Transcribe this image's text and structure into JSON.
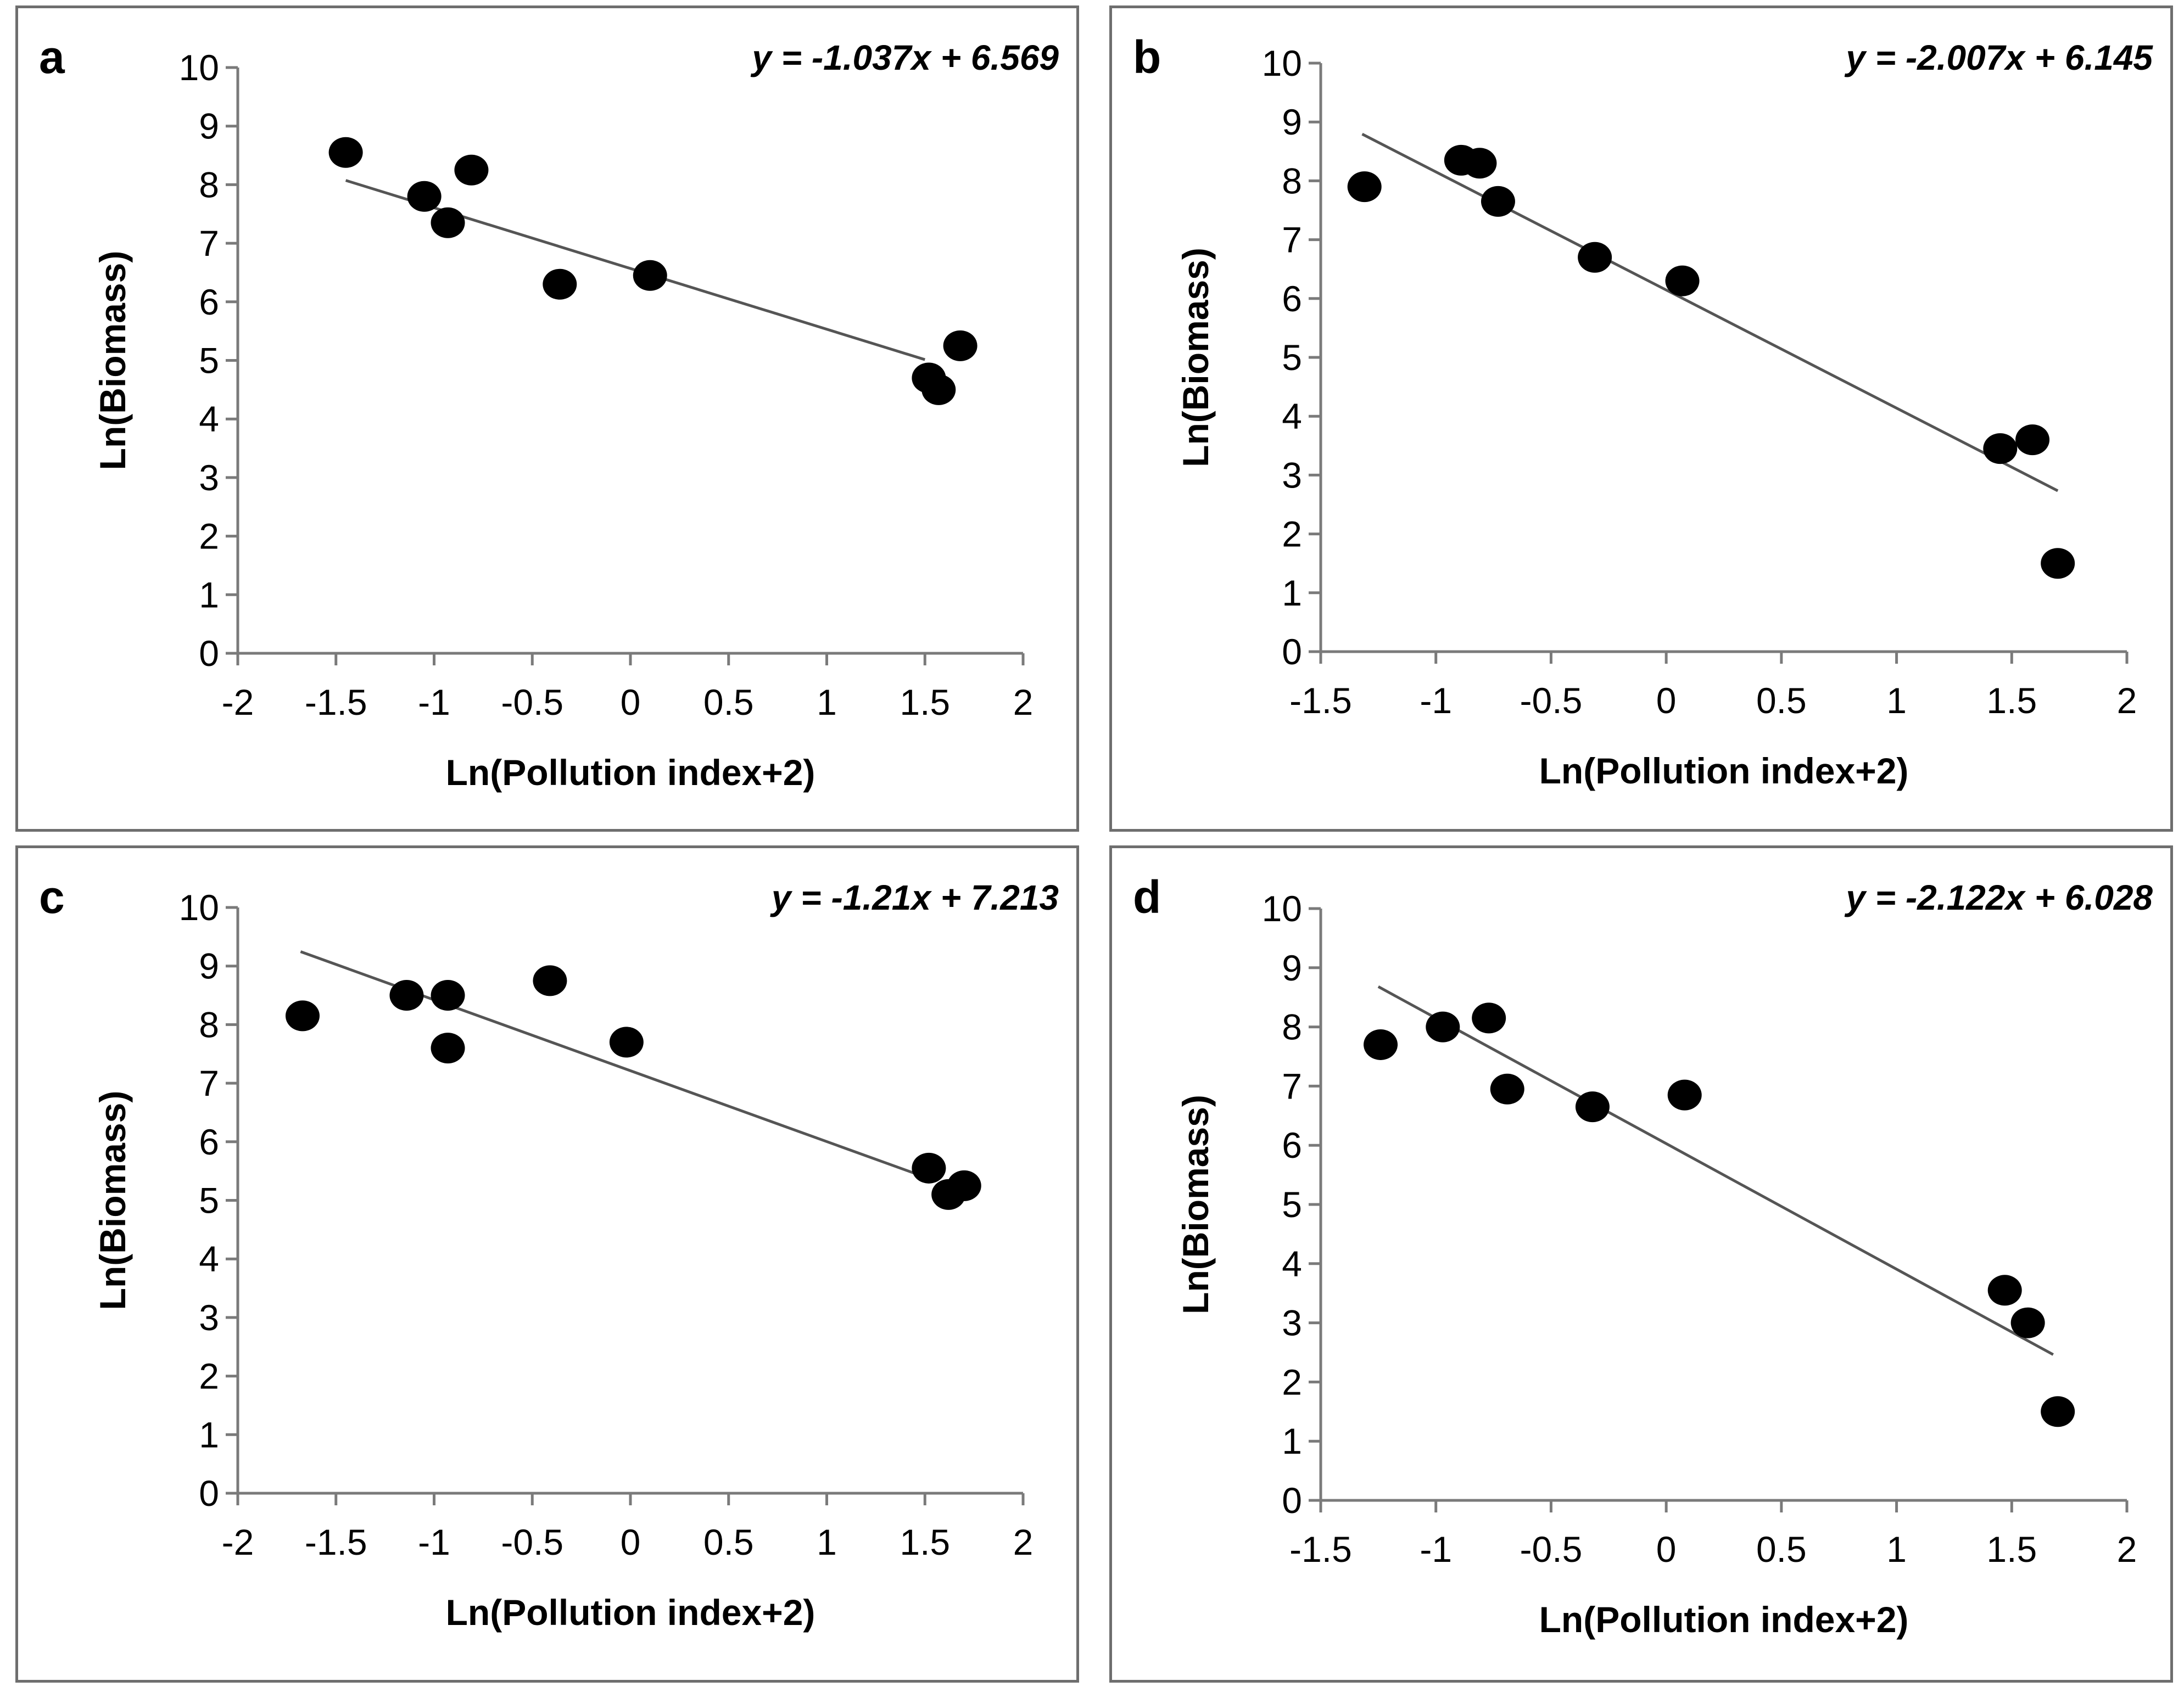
{
  "chart_data": [
    {
      "type": "scatter",
      "panel_label": "a",
      "equation": "y = -1.037x + 6.569",
      "slope": -1.037,
      "intercept": 6.569,
      "trend_x": [
        -1.45,
        1.5
      ],
      "xlabel": "Ln(Pollution index+2)",
      "ylabel": "Ln(Biomass)",
      "xlim": [
        -2,
        2
      ],
      "ylim": [
        0,
        10
      ],
      "x_ticks": [
        "-2",
        "-1.5",
        "-1",
        "-0.5",
        "0",
        "0.5",
        "1",
        "1.5",
        "2"
      ],
      "y_ticks": [
        "0",
        "1",
        "2",
        "3",
        "4",
        "5",
        "6",
        "7",
        "8",
        "9",
        "10"
      ],
      "points": [
        {
          "x": -1.45,
          "y": 8.55
        },
        {
          "x": -1.05,
          "y": 7.8
        },
        {
          "x": -0.93,
          "y": 7.35
        },
        {
          "x": -0.81,
          "y": 8.25
        },
        {
          "x": -0.36,
          "y": 6.3
        },
        {
          "x": 0.1,
          "y": 6.45
        },
        {
          "x": 1.52,
          "y": 4.7
        },
        {
          "x": 1.57,
          "y": 4.5
        },
        {
          "x": 1.68,
          "y": 5.25
        }
      ]
    },
    {
      "type": "scatter",
      "panel_label": "b",
      "equation": "y = -2.007x + 6.145",
      "slope": -2.007,
      "intercept": 6.145,
      "trend_x": [
        -1.32,
        1.7
      ],
      "xlabel": "Ln(Pollution index+2)",
      "ylabel": "Ln(Biomass)",
      "xlim": [
        -1.5,
        2
      ],
      "ylim": [
        0,
        10
      ],
      "x_ticks": [
        "-1.5",
        "-1",
        "-0.5",
        "0",
        "0.5",
        "1",
        "1.5",
        "2"
      ],
      "y_ticks": [
        "0",
        "1",
        "2",
        "3",
        "4",
        "5",
        "6",
        "7",
        "8",
        "9",
        "10"
      ],
      "points": [
        {
          "x": -1.31,
          "y": 7.9
        },
        {
          "x": -0.89,
          "y": 8.35
        },
        {
          "x": -0.81,
          "y": 8.3
        },
        {
          "x": -0.73,
          "y": 7.65
        },
        {
          "x": -0.31,
          "y": 6.7
        },
        {
          "x": 0.07,
          "y": 6.3
        },
        {
          "x": 1.45,
          "y": 3.45
        },
        {
          "x": 1.59,
          "y": 3.6
        },
        {
          "x": 1.7,
          "y": 1.5
        }
      ]
    },
    {
      "type": "scatter",
      "panel_label": "c",
      "equation": "y = -1.21x + 7.213",
      "slope": -1.21,
      "intercept": 7.213,
      "trend_x": [
        -1.68,
        1.55
      ],
      "xlabel": "Ln(Pollution index+2)",
      "ylabel": "Ln(Biomass)",
      "xlim": [
        -2,
        2
      ],
      "ylim": [
        0,
        10
      ],
      "x_ticks": [
        "-2",
        "-1.5",
        "-1",
        "-0.5",
        "0",
        "0.5",
        "1",
        "1.5",
        "2"
      ],
      "y_ticks": [
        "0",
        "1",
        "2",
        "3",
        "4",
        "5",
        "6",
        "7",
        "8",
        "9",
        "10"
      ],
      "points": [
        {
          "x": -1.67,
          "y": 8.15
        },
        {
          "x": -1.14,
          "y": 8.5
        },
        {
          "x": -0.93,
          "y": 8.5
        },
        {
          "x": -0.93,
          "y": 7.6
        },
        {
          "x": -0.41,
          "y": 8.75
        },
        {
          "x": -0.02,
          "y": 7.7
        },
        {
          "x": 1.52,
          "y": 5.55
        },
        {
          "x": 1.62,
          "y": 5.1
        },
        {
          "x": 1.7,
          "y": 5.25
        }
      ]
    },
    {
      "type": "scatter",
      "panel_label": "d",
      "equation": "y = -2.122x + 6.028",
      "slope": -2.122,
      "intercept": 6.028,
      "trend_x": [
        -1.25,
        1.68
      ],
      "xlabel": "Ln(Pollution index+2)",
      "ylabel": "Ln(Biomass)",
      "xlim": [
        -1.5,
        2
      ],
      "ylim": [
        0,
        10
      ],
      "x_ticks": [
        "-1.5",
        "-1",
        "-0.5",
        "0",
        "0.5",
        "1",
        "1.5",
        "2"
      ],
      "y_ticks": [
        "0",
        "1",
        "2",
        "3",
        "4",
        "5",
        "6",
        "7",
        "8",
        "9",
        "10"
      ],
      "points": [
        {
          "x": -1.24,
          "y": 7.7
        },
        {
          "x": -0.97,
          "y": 8.0
        },
        {
          "x": -0.77,
          "y": 8.15
        },
        {
          "x": -0.69,
          "y": 6.95
        },
        {
          "x": -0.32,
          "y": 6.65
        },
        {
          "x": 0.08,
          "y": 6.85
        },
        {
          "x": 1.47,
          "y": 3.55
        },
        {
          "x": 1.57,
          "y": 3.0
        },
        {
          "x": 1.7,
          "y": 1.5
        }
      ]
    }
  ]
}
